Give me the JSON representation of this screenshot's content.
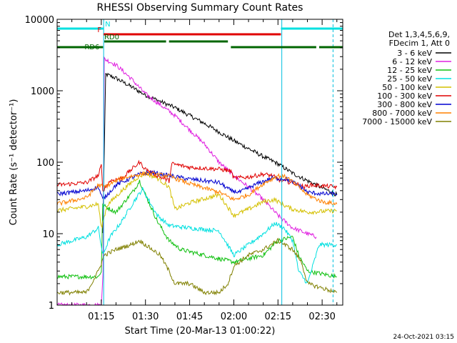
{
  "chart_data": {
    "type": "line",
    "title": "RHESSI Observing Summary Count Rates",
    "xlabel": "Start Time (20-Mar-13 01:00:22)",
    "ylabel": "Count Rate (s⁻¹ detector⁻¹)",
    "yscale": "log",
    "ylim": [
      1,
      10000
    ],
    "xlim_minutes": [
      0,
      97
    ],
    "xticks": [
      {
        "m": 15,
        "label": "01:15"
      },
      {
        "m": 30,
        "label": "01:30"
      },
      {
        "m": 45,
        "label": "01:45"
      },
      {
        "m": 60,
        "label": "02:00"
      },
      {
        "m": 75,
        "label": "02:15"
      },
      {
        "m": 90,
        "label": "02:30"
      }
    ],
    "yticks": [
      {
        "v": 1,
        "label": "1"
      },
      {
        "v": 10,
        "label": "10"
      },
      {
        "v": 100,
        "label": "100"
      },
      {
        "v": 1000,
        "label": "1000"
      },
      {
        "v": 10000,
        "label": "10000"
      }
    ],
    "legend_header": [
      "Det 1,3,4,5,6,9,",
      "FDecim 1, Att 0"
    ],
    "series": [
      {
        "name": "3 - 6 keV",
        "color": "#000000",
        "points": [
          [
            15.5,
            10
          ],
          [
            16.5,
            1700
          ],
          [
            20,
            1500
          ],
          [
            25,
            1150
          ],
          [
            30,
            870
          ],
          [
            40,
            580
          ],
          [
            50,
            350
          ],
          [
            60,
            200
          ],
          [
            70,
            120
          ],
          [
            75,
            95
          ],
          [
            80,
            70
          ],
          [
            85,
            55
          ],
          [
            95,
            35
          ]
        ]
      },
      {
        "name": "6 - 12 keV",
        "color": "#e020e0",
        "points": [
          [
            0,
            1
          ],
          [
            11,
            1
          ],
          [
            14,
            1
          ],
          [
            15,
            1
          ],
          [
            15.6,
            3
          ],
          [
            16,
            2800
          ],
          [
            20,
            2300
          ],
          [
            25,
            1500
          ],
          [
            30,
            900
          ],
          [
            40,
            450
          ],
          [
            50,
            180
          ],
          [
            55,
            100
          ],
          [
            60,
            65
          ],
          [
            65,
            45
          ],
          [
            70,
            30
          ],
          [
            75,
            18
          ],
          [
            80,
            12
          ],
          [
            85,
            10
          ],
          [
            88,
            9
          ]
        ]
      },
      {
        "name": "12 - 25 keV",
        "color": "#10c010",
        "points": [
          [
            0,
            2.5
          ],
          [
            14,
            2.5
          ],
          [
            15,
            3
          ],
          [
            15.5,
            25
          ],
          [
            20,
            20
          ],
          [
            26,
            40
          ],
          [
            28,
            55
          ],
          [
            30,
            35
          ],
          [
            34,
            15
          ],
          [
            38,
            8
          ],
          [
            42,
            6
          ],
          [
            50,
            5
          ],
          [
            60,
            4
          ],
          [
            70,
            5
          ],
          [
            75,
            8
          ],
          [
            80,
            9
          ],
          [
            82,
            5
          ],
          [
            85,
            3
          ],
          [
            95,
            2.5
          ]
        ]
      },
      {
        "name": "25 - 50 keV",
        "color": "#00e0e0",
        "points": [
          [
            0,
            7
          ],
          [
            10,
            9
          ],
          [
            14,
            12
          ],
          [
            15.5,
            5
          ],
          [
            18,
            9
          ],
          [
            22,
            15
          ],
          [
            26,
            28
          ],
          [
            29,
            42
          ],
          [
            31,
            30
          ],
          [
            34,
            18
          ],
          [
            38,
            13
          ],
          [
            45,
            12
          ],
          [
            55,
            11
          ],
          [
            60,
            5
          ],
          [
            65,
            7
          ],
          [
            70,
            10
          ],
          [
            74,
            14
          ],
          [
            77,
            12
          ],
          [
            80,
            8
          ],
          [
            82,
            3
          ],
          [
            85,
            2
          ],
          [
            89,
            7
          ],
          [
            95,
            7
          ]
        ]
      },
      {
        "name": "50 - 100 keV",
        "color": "#d4c000",
        "points": [
          [
            0,
            21
          ],
          [
            10,
            24
          ],
          [
            14,
            26
          ],
          [
            15,
            12
          ],
          [
            17,
            25
          ],
          [
            22,
            40
          ],
          [
            27,
            60
          ],
          [
            30,
            70
          ],
          [
            34,
            60
          ],
          [
            38,
            45
          ],
          [
            40,
            22
          ],
          [
            45,
            27
          ],
          [
            55,
            35
          ],
          [
            60,
            18
          ],
          [
            65,
            22
          ],
          [
            70,
            28
          ],
          [
            74,
            30
          ],
          [
            77,
            25
          ],
          [
            80,
            22
          ],
          [
            85,
            20
          ],
          [
            95,
            21
          ]
        ]
      },
      {
        "name": "100 - 300 keV",
        "color": "#e00000",
        "points": [
          [
            0,
            48
          ],
          [
            10,
            52
          ],
          [
            14,
            65
          ],
          [
            15,
            90
          ],
          [
            15.5,
            40
          ],
          [
            18,
            55
          ],
          [
            22,
            60
          ],
          [
            28,
            100
          ],
          [
            30,
            80
          ],
          [
            34,
            65
          ],
          [
            38,
            55
          ],
          [
            39,
            95
          ],
          [
            45,
            85
          ],
          [
            55,
            80
          ],
          [
            59,
            75
          ],
          [
            60,
            60
          ],
          [
            65,
            62
          ],
          [
            70,
            68
          ],
          [
            73,
            65
          ],
          [
            76,
            55
          ],
          [
            80,
            52
          ],
          [
            84,
            45
          ],
          [
            86,
            48
          ],
          [
            95,
            45
          ]
        ]
      },
      {
        "name": "300 - 800 keV",
        "color": "#0000d0",
        "points": [
          [
            0,
            36
          ],
          [
            10,
            40
          ],
          [
            14,
            45
          ],
          [
            15.5,
            30
          ],
          [
            20,
            48
          ],
          [
            28,
            68
          ],
          [
            32,
            72
          ],
          [
            38,
            65
          ],
          [
            45,
            58
          ],
          [
            55,
            52
          ],
          [
            59,
            40
          ],
          [
            62,
            38
          ],
          [
            68,
            50
          ],
          [
            73,
            60
          ],
          [
            78,
            58
          ],
          [
            82,
            48
          ],
          [
            85,
            38
          ],
          [
            90,
            36
          ],
          [
            95,
            36
          ]
        ]
      },
      {
        "name": "800 - 7000 keV",
        "color": "#ff8000",
        "points": [
          [
            0,
            26
          ],
          [
            10,
            32
          ],
          [
            14,
            48
          ],
          [
            16,
            45
          ],
          [
            22,
            60
          ],
          [
            30,
            70
          ],
          [
            38,
            64
          ],
          [
            45,
            50
          ],
          [
            55,
            38
          ],
          [
            60,
            30
          ],
          [
            65,
            35
          ],
          [
            70,
            50
          ],
          [
            75,
            65
          ],
          [
            78,
            62
          ],
          [
            82,
            45
          ],
          [
            85,
            35
          ],
          [
            90,
            28
          ],
          [
            95,
            26
          ]
        ]
      },
      {
        "name": "7000 - 15000 keV",
        "color": "#808000",
        "points": [
          [
            0,
            1.5
          ],
          [
            10,
            1.5
          ],
          [
            14,
            3
          ],
          [
            16,
            5
          ],
          [
            20,
            6
          ],
          [
            25,
            7
          ],
          [
            28,
            8
          ],
          [
            30,
            7
          ],
          [
            35,
            5
          ],
          [
            38,
            3
          ],
          [
            40,
            2
          ],
          [
            45,
            2
          ],
          [
            50,
            1.5
          ],
          [
            55,
            1.5
          ],
          [
            58,
            2
          ],
          [
            60,
            3.5
          ],
          [
            65,
            5
          ],
          [
            70,
            6
          ],
          [
            75,
            8
          ],
          [
            80,
            6
          ],
          [
            83,
            4
          ],
          [
            85,
            2
          ],
          [
            95,
            1.5
          ]
        ]
      }
    ],
    "status_bars": [
      {
        "label": "N",
        "color": "#00e0e0",
        "segments": [
          [
            0,
            15.8
          ],
          [
            76,
            97
          ]
        ]
      },
      {
        "label": "F",
        "color": "#e00000",
        "segments": [
          [
            15.8,
            76
          ]
        ]
      },
      {
        "label": "RD0",
        "color": "#006600",
        "segments": [
          [
            16,
            37
          ],
          [
            38,
            58
          ]
        ]
      },
      {
        "label": "RD6",
        "color": "#006600",
        "segments": [
          [
            0,
            15.6
          ],
          [
            59,
            88
          ],
          [
            89,
            97
          ]
        ]
      }
    ],
    "saa_lines": [
      15.8,
      76.3
    ],
    "night_lines": [
      93.7
    ]
  },
  "footer": {
    "date": "24-Oct-2021 03:15"
  }
}
